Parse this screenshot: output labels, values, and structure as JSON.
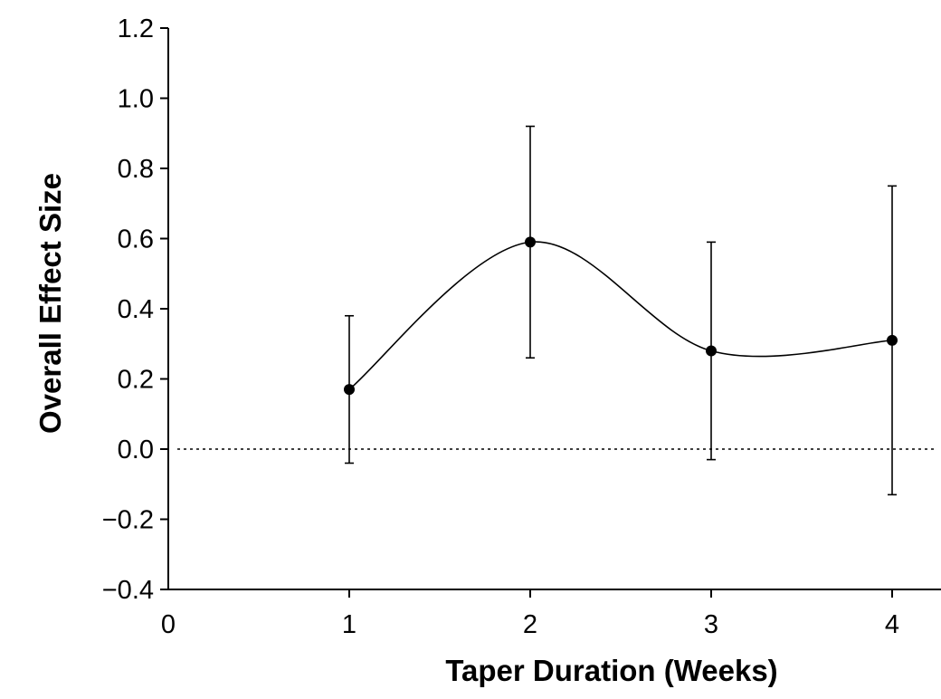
{
  "chart_data": {
    "type": "line",
    "title": "",
    "xlabel": "Taper Duration (Weeks)",
    "ylabel": "Overall Effect Size",
    "xlim": [
      0,
      4.25
    ],
    "ylim": [
      -0.4,
      1.2
    ],
    "x_ticks": [
      0,
      1,
      2,
      3,
      4
    ],
    "y_ticks": [
      -0.4,
      -0.2,
      0.0,
      0.2,
      0.4,
      0.6,
      0.8,
      1.0,
      1.2
    ],
    "x_tick_labels": [
      "0",
      "1",
      "2",
      "3",
      "4"
    ],
    "y_tick_labels": [
      "−0.4",
      "−0.2",
      "0.0",
      "0.2",
      "0.4",
      "0.6",
      "0.8",
      "1.0",
      "1.2"
    ],
    "reference_line": {
      "y": 0.0,
      "style": "dotted"
    },
    "smooth_curve": true,
    "grid": false,
    "legend": "none",
    "series": [
      {
        "x": [
          1,
          2,
          3,
          4
        ],
        "y": [
          0.17,
          0.59,
          0.28,
          0.31
        ],
        "err_low": [
          -0.04,
          0.26,
          -0.03,
          -0.13
        ],
        "err_high": [
          0.38,
          0.92,
          0.59,
          0.75
        ]
      }
    ]
  }
}
